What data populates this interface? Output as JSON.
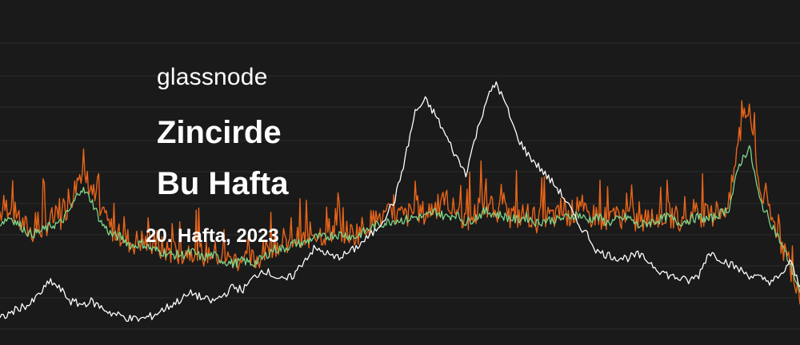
{
  "header": {
    "brand": "glassnode",
    "title_line1": "Zincirde",
    "title_line2": "Bu Hafta",
    "subtitle": "20. Hafta, 2023"
  },
  "colors": {
    "background": "#1a1a1a",
    "grid": "#2c2c2c",
    "price_line": "#ffffff",
    "metric_raw": "#e8651a",
    "metric_smoothed": "#7ed68a"
  },
  "chart_data": {
    "type": "line",
    "title": "",
    "xlabel": "",
    "ylabel": "",
    "grid": true,
    "ylim": [
      0,
      100
    ],
    "series": [
      {
        "role": "price",
        "color": "#ffffff",
        "values": [
          7,
          9,
          11,
          12,
          16,
          20,
          17,
          13,
          12,
          13,
          11,
          9,
          8,
          7,
          7,
          8,
          10,
          12,
          14,
          16,
          14,
          13,
          15,
          18,
          17,
          21,
          24,
          22,
          20,
          22,
          27,
          31,
          30,
          28,
          29,
          31,
          34,
          37,
          42,
          48,
          62,
          78,
          82,
          77,
          70,
          63,
          57,
          70,
          82,
          88,
          80,
          70,
          64,
          60,
          56,
          52,
          47,
          40,
          36,
          30,
          29,
          28,
          28,
          29,
          27,
          24,
          22,
          21,
          20,
          22,
          30,
          28,
          26,
          24,
          22,
          21,
          20,
          21,
          27,
          18
        ]
      },
      {
        "role": "metric-raw",
        "color": "#e8651a",
        "values": [
          44,
          46,
          40,
          37,
          38,
          41,
          42,
          48,
          58,
          52,
          42,
          38,
          36,
          33,
          34,
          32,
          31,
          30,
          30,
          31,
          29,
          30,
          28,
          27,
          28,
          27,
          29,
          33,
          32,
          35,
          34,
          37,
          36,
          38,
          37,
          36,
          39,
          41,
          42,
          43,
          42,
          44,
          43,
          46,
          44,
          45,
          41,
          43,
          46,
          44,
          43,
          42,
          43,
          41,
          42,
          42,
          43,
          44,
          42,
          43,
          41,
          42,
          43,
          40,
          41,
          42,
          43,
          41,
          42,
          43,
          42,
          44,
          46,
          70,
          80,
          52,
          43,
          35,
          25,
          12
        ]
      },
      {
        "role": "metric-smoothed",
        "color": "#7ed68a",
        "values": [
          40,
          42,
          39,
          36,
          37,
          39,
          40,
          45,
          52,
          48,
          40,
          36,
          35,
          32,
          33,
          31,
          30,
          29,
          29,
          30,
          28,
          29,
          27,
          26,
          27,
          26,
          28,
          31,
          31,
          33,
          33,
          35,
          35,
          36,
          36,
          35,
          37,
          39,
          40,
          41,
          41,
          42,
          42,
          44,
          42,
          43,
          40,
          42,
          44,
          43,
          42,
          41,
          42,
          40,
          41,
          41,
          42,
          43,
          41,
          42,
          40,
          41,
          42,
          39,
          40,
          41,
          42,
          40,
          41,
          42,
          41,
          43,
          45,
          60,
          66,
          48,
          41,
          34,
          26,
          16
        ]
      }
    ]
  }
}
